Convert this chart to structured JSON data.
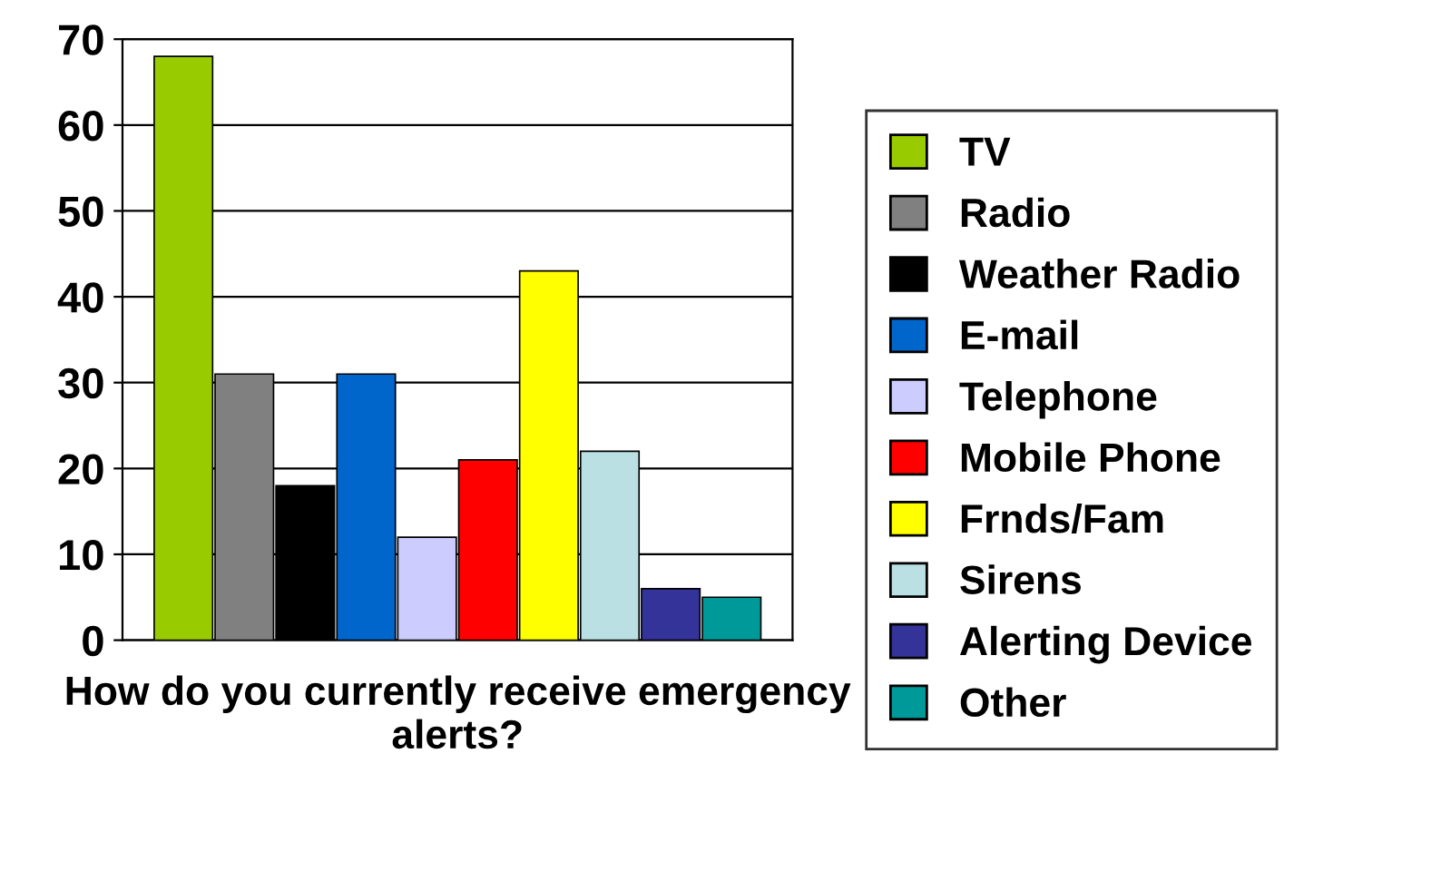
{
  "chart_data": {
    "type": "bar",
    "xlabel": "How do you currently receive emergency alerts?",
    "categories": [
      null,
      null,
      null,
      null,
      null,
      null,
      null,
      null,
      null,
      null
    ],
    "series": [
      {
        "name": "TV",
        "color": "#99cc00",
        "values": [
          68,
          null,
          null,
          null,
          null,
          null,
          null,
          null,
          null,
          null
        ]
      },
      {
        "name": "Radio",
        "color": "#808080",
        "values": [
          null,
          31,
          null,
          null,
          null,
          null,
          null,
          null,
          null,
          null
        ]
      },
      {
        "name": "Weather Radio",
        "color": "#000000",
        "values": [
          null,
          null,
          18,
          null,
          null,
          null,
          null,
          null,
          null,
          null
        ]
      },
      {
        "name": "E-mail",
        "color": "#0066cc",
        "values": [
          null,
          null,
          null,
          31,
          null,
          null,
          null,
          null,
          null,
          null
        ]
      },
      {
        "name": "Telephone",
        "color": "#ccccff",
        "values": [
          null,
          null,
          null,
          null,
          12,
          null,
          null,
          null,
          null,
          null
        ]
      },
      {
        "name": "Mobile Phone",
        "color": "#ff0000",
        "values": [
          null,
          null,
          null,
          null,
          null,
          21,
          null,
          null,
          null,
          null
        ]
      },
      {
        "name": "Frnds/Fam",
        "color": "#ffff00",
        "values": [
          null,
          null,
          null,
          null,
          null,
          null,
          43,
          null,
          null,
          null
        ]
      },
      {
        "name": "Sirens",
        "color": "#bbe0e3",
        "values": [
          null,
          null,
          null,
          null,
          null,
          null,
          null,
          22,
          null,
          null
        ]
      },
      {
        "name": "Alerting Device",
        "color": "#333399",
        "values": [
          null,
          null,
          null,
          null,
          null,
          null,
          null,
          null,
          6,
          null
        ]
      },
      {
        "name": "Other",
        "color": "#009999",
        "values": [
          null,
          null,
          null,
          null,
          null,
          null,
          null,
          null,
          null,
          5
        ]
      }
    ],
    "ylim": [
      0,
      70
    ],
    "yticks": [
      0,
      10,
      20,
      30,
      40,
      50,
      60,
      70
    ],
    "grid": "y",
    "legend": "right"
  }
}
